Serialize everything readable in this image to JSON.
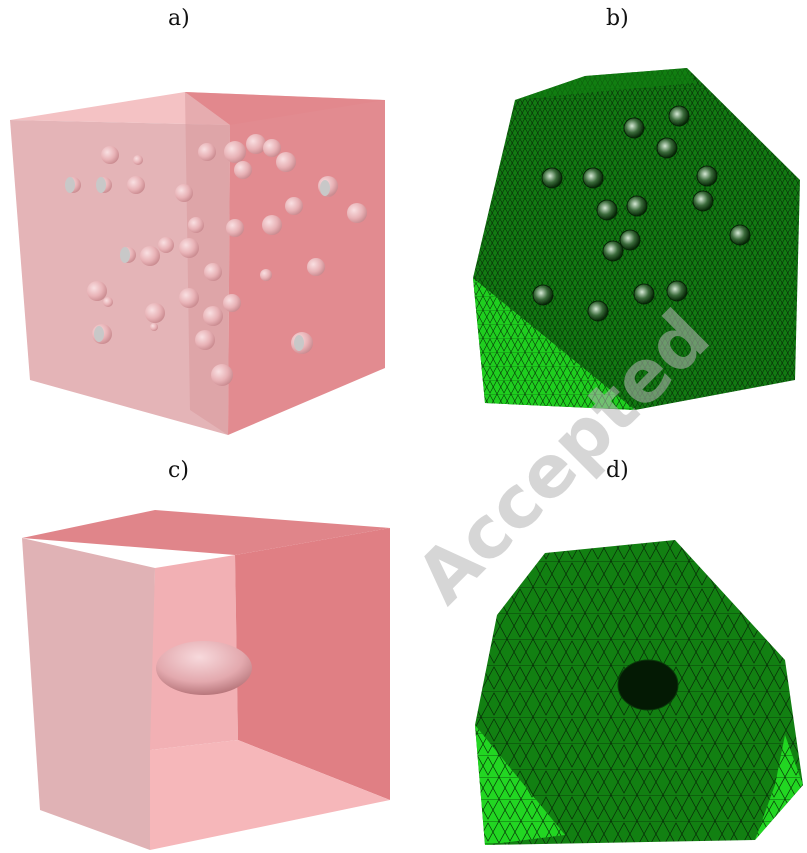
{
  "panels": [
    {
      "id": "a",
      "label": "a)",
      "description": "cube-with-spherical-inclusions"
    },
    {
      "id": "b",
      "label": "b)",
      "description": "tetrahedral-mesh-spherical-inclusions"
    },
    {
      "id": "c",
      "label": "c)",
      "description": "cube-with-ellipsoidal-inclusion"
    },
    {
      "id": "d",
      "label": "d)",
      "description": "tetrahedral-mesh-ellipsoidal-inclusion"
    }
  ],
  "watermark": {
    "text": "Accepted manuscript",
    "note": "partially visible diagonal watermark"
  },
  "colors": {
    "cube_left_face": "#e3b3b6",
    "cube_right_face": "#e08488",
    "cube_top_face": "#f3c4c6",
    "sphere": "#ebbcc0",
    "sphere_cut": "#c9c9c9",
    "mesh_dark": "#0f7a0f",
    "mesh_light": "#1fd41f",
    "mesh_line": "#0a2a0a"
  }
}
